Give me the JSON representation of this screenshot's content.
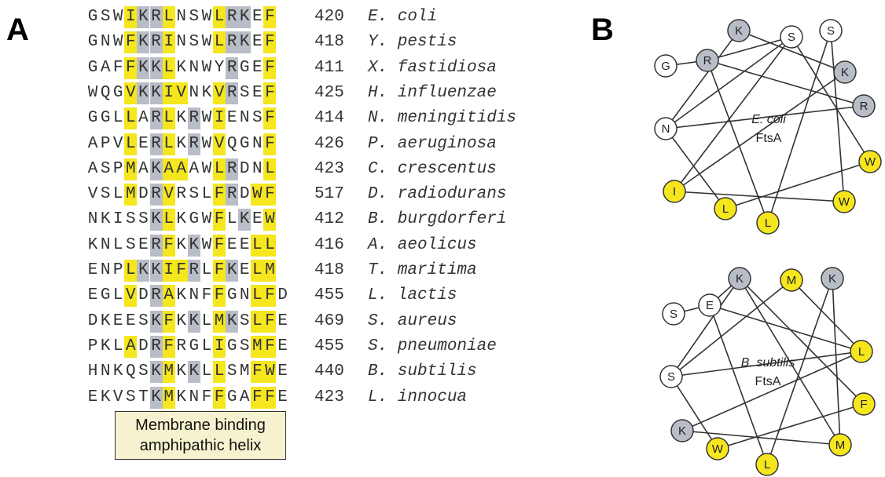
{
  "panel_a_label": "A",
  "panel_b_label": "B",
  "colors": {
    "hydrophobic": "#f5e61e",
    "basic": "#b8bdc7",
    "neutral": "#ffffff"
  },
  "sequences": [
    {
      "seq": "GSWIKRLNSWLRKEF",
      "num": "420",
      "organism": "E. coli"
    },
    {
      "seq": "GNWFKRINSWLRKEF",
      "num": "418",
      "organism": "Y. pestis"
    },
    {
      "seq": "GAFFKKLKNWYRGEF",
      "num": "411",
      "organism": "X. fastidiosa"
    },
    {
      "seq": "WQGVKKIVNKVRSEF",
      "num": "425",
      "organism": "H. influenzae"
    },
    {
      "seq": "GGLLARLKRWIENSF",
      "num": "414",
      "organism": "N. meningitidis"
    },
    {
      "seq": "APVLERLKRWVQGNF",
      "num": "426",
      "organism": "P. aeruginosa"
    },
    {
      "seq": "ASPMAKAAAWLRDNL",
      "num": "423",
      "organism": "C. crescentus"
    },
    {
      "seq": "VSLMDRVRSLFRDWF",
      "num": "517",
      "organism": "D. radiodurans"
    },
    {
      "seq": "NKISSKLKGWFLKEW",
      "num": "412",
      "organism": "B. burgdorferi"
    },
    {
      "seq": "KNLSERFKKWFEELL",
      "num": "416",
      "organism": "A. aeolicus"
    },
    {
      "seq": "ENPLKKIFRLFKELM",
      "num": "418",
      "organism": "T. maritima"
    },
    {
      "seq": "EGLVDRAKNFFGNLFD",
      "num": "455",
      "organism": "L. lactis"
    },
    {
      "seq": "DKEESKFKKLMKSLFE",
      "num": "469",
      "organism": "S. aureus"
    },
    {
      "seq": "PKLADRFRGLIGSMFE",
      "num": "455",
      "organism": "S. pneumoniae"
    },
    {
      "seq": "HNKQSKMKKLLSMFWE",
      "num": "440",
      "organism": "B. subtilis"
    },
    {
      "seq": "EKVSTKMKNFFGAFFE",
      "num": "423",
      "organism": "L. innocua"
    }
  ],
  "callout": {
    "line1": "Membrane binding",
    "line2": "amphipathic helix"
  },
  "wheel_top": {
    "organism": "E. coli",
    "protein": "FtsA",
    "residues": [
      {
        "letter": "K",
        "type": "basic"
      },
      {
        "letter": "S",
        "type": "neutral"
      },
      {
        "letter": "S",
        "type": "neutral"
      },
      {
        "letter": "K",
        "type": "basic"
      },
      {
        "letter": "R",
        "type": "basic"
      },
      {
        "letter": "W",
        "type": "hydrophobic"
      },
      {
        "letter": "W",
        "type": "hydrophobic"
      },
      {
        "letter": "L",
        "type": "hydrophobic"
      },
      {
        "letter": "L",
        "type": "hydrophobic"
      },
      {
        "letter": "I",
        "type": "hydrophobic"
      },
      {
        "letter": "N",
        "type": "neutral"
      },
      {
        "letter": "G",
        "type": "neutral"
      },
      {
        "letter": "R",
        "type": "basic"
      }
    ]
  },
  "wheel_bottom": {
    "organism": "B. subtilis",
    "protein": "FtsA",
    "residues": [
      {
        "letter": "K",
        "type": "basic"
      },
      {
        "letter": "M",
        "type": "hydrophobic"
      },
      {
        "letter": "K",
        "type": "basic"
      },
      {
        "letter": "L",
        "type": "hydrophobic"
      },
      {
        "letter": "F",
        "type": "hydrophobic"
      },
      {
        "letter": "M",
        "type": "hydrophobic"
      },
      {
        "letter": "L",
        "type": "hydrophobic"
      },
      {
        "letter": "W",
        "type": "hydrophobic"
      },
      {
        "letter": "K",
        "type": "basic"
      },
      {
        "letter": "S",
        "type": "neutral"
      },
      {
        "letter": "S",
        "type": "neutral"
      },
      {
        "letter": "E",
        "type": "neutral"
      }
    ]
  }
}
